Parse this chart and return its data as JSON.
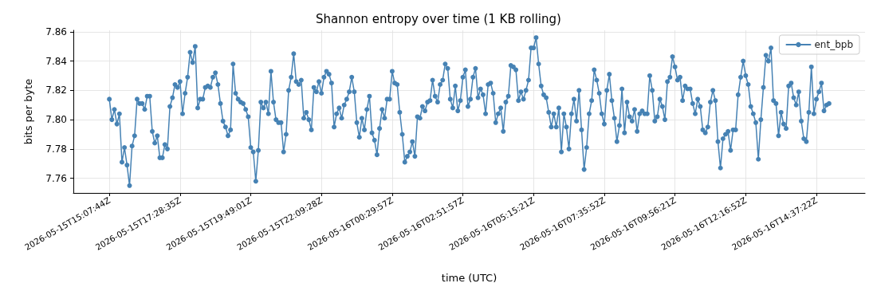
{
  "chart_data": {
    "type": "line",
    "title": "Shannon entropy over time (1 KB rolling)",
    "xlabel": "time (UTC)",
    "ylabel": "bits per byte",
    "categories": [
      "2026-05-15T15:07:44Z",
      null,
      null,
      null,
      null,
      null,
      null,
      null,
      null,
      null,
      null,
      null,
      null,
      null,
      null,
      null,
      null,
      null,
      null,
      null,
      null,
      null,
      null,
      null,
      null,
      null,
      null,
      null,
      "2026-05-15T17:28:35Z",
      null,
      null,
      null,
      null,
      null,
      null,
      null,
      null,
      null,
      null,
      null,
      null,
      null,
      null,
      null,
      null,
      null,
      null,
      null,
      null,
      null,
      null,
      null,
      null,
      null,
      null,
      null,
      "2026-05-15T19:49:01Z",
      null,
      null,
      null,
      null,
      null,
      null,
      null,
      null,
      null,
      null,
      null,
      null,
      null,
      null,
      null,
      null,
      null,
      null,
      null,
      null,
      null,
      null,
      null,
      null,
      null,
      null,
      null,
      "2026-05-15T22:09:28Z",
      null,
      null,
      null,
      null,
      null,
      null,
      null,
      null,
      null,
      null,
      null,
      null,
      null,
      null,
      null,
      null,
      null,
      null,
      null,
      null,
      null,
      null,
      null,
      null,
      null,
      null,
      null,
      "2026-05-16T00:29:57Z",
      null,
      null,
      null,
      null,
      null,
      null,
      null,
      null,
      null,
      null,
      null,
      null,
      null,
      null,
      null,
      null,
      null,
      null,
      null,
      null,
      null,
      null,
      null,
      null,
      null,
      null,
      null,
      "2026-05-16T02:51:57Z",
      null,
      null,
      null,
      null,
      null,
      null,
      null,
      null,
      null,
      null,
      null,
      null,
      null,
      null,
      null,
      null,
      null,
      null,
      null,
      null,
      null,
      null,
      null,
      null,
      null,
      null,
      null,
      "2026-05-16T05:15:21Z",
      null,
      null,
      null,
      null,
      null,
      null,
      null,
      null,
      null,
      null,
      null,
      null,
      null,
      null,
      null,
      null,
      null,
      null,
      null,
      null,
      null,
      null,
      null,
      null,
      null,
      null,
      null,
      "2026-05-16T07:35:52Z",
      null,
      null,
      null,
      null,
      null,
      null,
      null,
      null,
      null,
      null,
      null,
      null,
      null,
      null,
      null,
      null,
      null,
      null,
      null,
      null,
      null,
      null,
      null,
      null,
      null,
      null,
      null,
      "2026-05-16T09:56:21Z",
      null,
      null,
      null,
      null,
      null,
      null,
      null,
      null,
      null,
      null,
      null,
      null,
      null,
      null,
      null,
      null,
      null,
      null,
      null,
      null,
      null,
      null,
      null,
      null,
      null,
      null,
      null,
      "2026-05-16T12:16:52Z",
      null,
      null,
      null,
      null,
      null,
      null,
      null,
      null,
      null,
      null,
      null,
      null,
      null,
      null,
      null,
      null,
      null,
      null,
      null,
      null,
      null,
      null,
      null,
      null,
      null,
      null,
      null,
      "2026-05-16T14:37:22Z",
      null,
      null,
      null,
      null,
      null
    ],
    "series": [
      {
        "name": "ent_bpb",
        "color": "#4682b4",
        "values": [
          7.814,
          7.8,
          7.807,
          7.797,
          7.804,
          7.771,
          7.781,
          7.769,
          7.755,
          7.782,
          7.789,
          7.814,
          7.811,
          7.811,
          7.807,
          7.816,
          7.816,
          7.792,
          7.784,
          7.789,
          7.774,
          7.774,
          7.783,
          7.78,
          7.809,
          7.815,
          7.824,
          7.822,
          7.826,
          7.804,
          7.818,
          7.829,
          7.846,
          7.839,
          7.85,
          7.808,
          7.814,
          7.814,
          7.822,
          7.823,
          7.822,
          7.829,
          7.832,
          7.824,
          7.811,
          7.799,
          7.795,
          7.789,
          7.793,
          7.838,
          7.818,
          7.814,
          7.812,
          7.811,
          7.807,
          7.802,
          7.781,
          7.778,
          7.758,
          7.779,
          7.812,
          7.808,
          7.812,
          7.804,
          7.833,
          7.812,
          7.8,
          7.798,
          7.798,
          7.778,
          7.79,
          7.82,
          7.829,
          7.845,
          7.826,
          7.824,
          7.827,
          7.801,
          7.805,
          7.8,
          7.793,
          7.822,
          7.819,
          7.826,
          7.818,
          7.829,
          7.833,
          7.831,
          7.825,
          7.795,
          7.804,
          7.808,
          7.801,
          7.81,
          7.814,
          7.819,
          7.829,
          7.819,
          7.798,
          7.788,
          7.801,
          7.793,
          7.807,
          7.816,
          7.791,
          7.786,
          7.776,
          7.794,
          7.807,
          7.801,
          7.814,
          7.814,
          7.833,
          7.825,
          7.824,
          7.805,
          7.79,
          7.771,
          7.775,
          7.778,
          7.785,
          7.775,
          7.802,
          7.801,
          7.809,
          7.806,
          7.812,
          7.813,
          7.827,
          7.816,
          7.812,
          7.824,
          7.827,
          7.838,
          7.835,
          7.814,
          7.808,
          7.823,
          7.806,
          7.813,
          7.829,
          7.834,
          7.809,
          7.814,
          7.829,
          7.835,
          7.815,
          7.821,
          7.817,
          7.804,
          7.824,
          7.825,
          7.818,
          7.798,
          7.804,
          7.808,
          7.792,
          7.812,
          7.816,
          7.837,
          7.836,
          7.834,
          7.813,
          7.819,
          7.814,
          7.82,
          7.827,
          7.849,
          7.849,
          7.856,
          7.838,
          7.823,
          7.817,
          7.815,
          7.805,
          7.795,
          7.804,
          7.795,
          7.808,
          7.778,
          7.804,
          7.795,
          7.78,
          7.804,
          7.814,
          7.799,
          7.82,
          7.793,
          7.766,
          7.781,
          7.804,
          7.813,
          7.834,
          7.827,
          7.818,
          7.804,
          7.797,
          7.82,
          7.831,
          7.813,
          7.801,
          7.785,
          7.796,
          7.821,
          7.791,
          7.812,
          7.802,
          7.799,
          7.807,
          7.792,
          7.804,
          7.806,
          7.804,
          7.804,
          7.83,
          7.82,
          7.799,
          7.802,
          7.814,
          7.809,
          7.8,
          7.826,
          7.829,
          7.843,
          7.836,
          7.827,
          7.829,
          7.813,
          7.823,
          7.821,
          7.821,
          7.811,
          7.804,
          7.814,
          7.809,
          7.793,
          7.791,
          7.795,
          7.812,
          7.82,
          7.813,
          7.785,
          7.767,
          7.787,
          7.79,
          7.792,
          7.779,
          7.793,
          7.793,
          7.817,
          7.829,
          7.84,
          7.83,
          7.824,
          7.809,
          7.804,
          7.798,
          7.773,
          7.8,
          7.822,
          7.844,
          7.84,
          7.849,
          7.813,
          7.811,
          7.789,
          7.805,
          7.797,
          7.794,
          7.823,
          7.825,
          7.815,
          7.81,
          7.819,
          7.799,
          7.787,
          7.785,
          7.805,
          7.836,
          7.804,
          7.814,
          7.819,
          7.825,
          7.806,
          7.81,
          7.811
        ]
      }
    ],
    "ylim": [
      7.75,
      7.861
    ],
    "yticks": [
      {
        "value": 7.76,
        "label": "7.76"
      },
      {
        "value": 7.78,
        "label": "7.78"
      },
      {
        "value": 7.8,
        "label": "7.80"
      },
      {
        "value": 7.82,
        "label": "7.82"
      },
      {
        "value": 7.84,
        "label": "7.84"
      },
      {
        "value": 7.86,
        "label": "7.86"
      }
    ],
    "grid": true,
    "legend": "top right",
    "marker": "circle",
    "line_style": "solid"
  }
}
